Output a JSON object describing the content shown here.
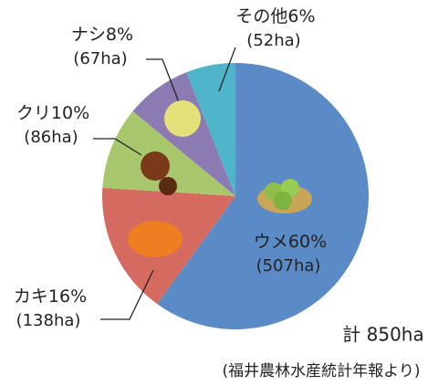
{
  "chart_data": {
    "type": "pie",
    "categories": [
      "ウメ",
      "カキ",
      "クリ",
      "ナシ",
      "その他"
    ],
    "values": [
      60,
      16,
      10,
      8,
      6
    ],
    "value_labels": [
      "60%",
      "16%",
      "10%",
      "8%",
      "6%"
    ],
    "area_labels": [
      "(507ha)",
      "(138ha)",
      "(86ha)",
      "(67ha)",
      "(52ha)"
    ],
    "colors": [
      "#5b8bc6",
      "#d56b60",
      "#a8c66c",
      "#8c7ab3",
      "#4fb5cb"
    ],
    "total_label": "計 850ha",
    "source": "(福井農林水産統計年報より)"
  }
}
